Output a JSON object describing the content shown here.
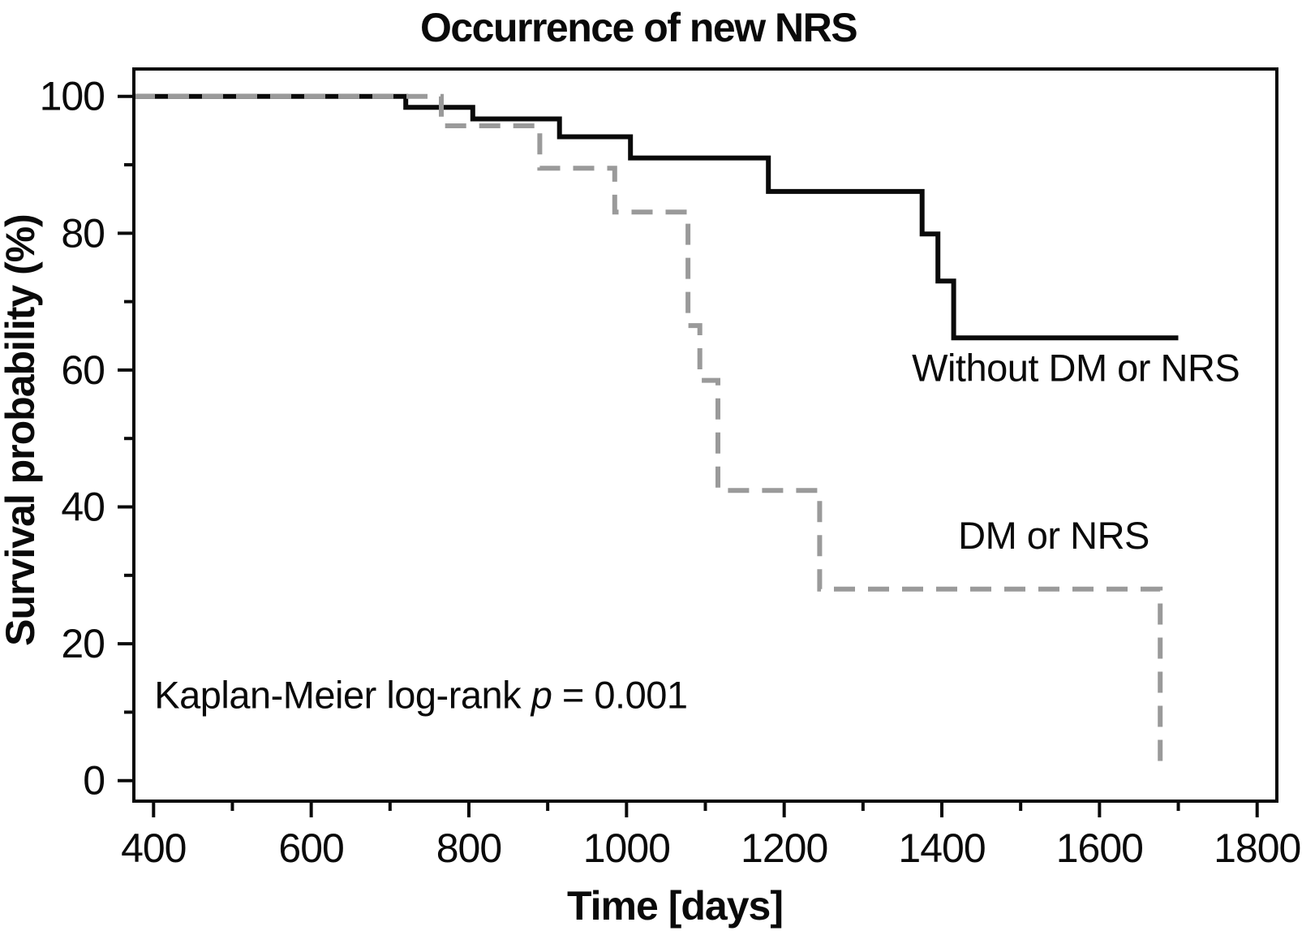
{
  "title": "Occurrence of new NRS",
  "axes": {
    "x_label": "Time [days]",
    "y_label": "Survival probability (%)"
  },
  "annotation": {
    "prefix": "Kaplan-Meier log-rank ",
    "p_symbol": "p",
    "suffix": " = 0.001",
    "anchor_days": 401,
    "anchor_pct": 12.5
  },
  "colors": {
    "curve_black": "#0a0a0a",
    "curve_gray": "#9a9a9a",
    "frame": "#0a0a0a",
    "background": "#ffffff"
  },
  "chart_data": {
    "type": "line",
    "subtype": "kaplan-meier-step",
    "title": "Occurrence of new NRS",
    "xlabel": "Time [days]",
    "ylabel": "Survival probability (%)",
    "xlim": [
      375,
      1825
    ],
    "ylim": [
      -3,
      104
    ],
    "x_major_ticks": [
      400,
      600,
      800,
      1000,
      1200,
      1400,
      1600,
      1800
    ],
    "x_minor_ticks": [
      500,
      700,
      900,
      1100,
      1300,
      1500,
      1700
    ],
    "y_major_ticks": [
      0,
      20,
      40,
      60,
      80,
      100
    ],
    "y_minor_ticks": [
      10,
      30,
      50,
      70,
      90
    ],
    "grid": false,
    "legend_position": "inline-labels",
    "annotation_text": "Kaplan-Meier log-rank p = 0.001",
    "series": [
      {
        "name": "Without DM or NRS",
        "color": "#0a0a0a",
        "style": "solid",
        "line_width": 6,
        "label_days": 1570,
        "label_pct": 60.3,
        "points": [
          [
            375,
            100
          ],
          [
            720,
            100
          ],
          [
            720,
            98.4
          ],
          [
            805,
            98.4
          ],
          [
            805,
            96.7
          ],
          [
            915,
            96.7
          ],
          [
            915,
            94.1
          ],
          [
            1005,
            94.1
          ],
          [
            1005,
            91.0
          ],
          [
            1180,
            91.0
          ],
          [
            1180,
            86.1
          ],
          [
            1375,
            86.1
          ],
          [
            1375,
            79.9
          ],
          [
            1395,
            79.9
          ],
          [
            1395,
            73.0
          ],
          [
            1415,
            73.0
          ],
          [
            1415,
            64.7
          ],
          [
            1700,
            64.7
          ]
        ]
      },
      {
        "name": "DM or NRS",
        "color": "#9a9a9a",
        "style": "dashed",
        "line_width": 6,
        "dash_array": [
          26,
          16
        ],
        "label_days": 1542,
        "label_pct": 35.8,
        "points": [
          [
            375,
            100
          ],
          [
            765,
            100
          ],
          [
            765,
            95.7
          ],
          [
            890,
            95.7
          ],
          [
            890,
            89.5
          ],
          [
            985,
            89.5
          ],
          [
            985,
            83.1
          ],
          [
            1078,
            83.1
          ],
          [
            1078,
            66.5
          ],
          [
            1093,
            66.5
          ],
          [
            1093,
            58.5
          ],
          [
            1116,
            58.5
          ],
          [
            1116,
            42.4
          ],
          [
            1245,
            42.4
          ],
          [
            1245,
            28.0
          ],
          [
            1677,
            28.0
          ],
          [
            1677,
            2.0
          ]
        ]
      }
    ]
  }
}
